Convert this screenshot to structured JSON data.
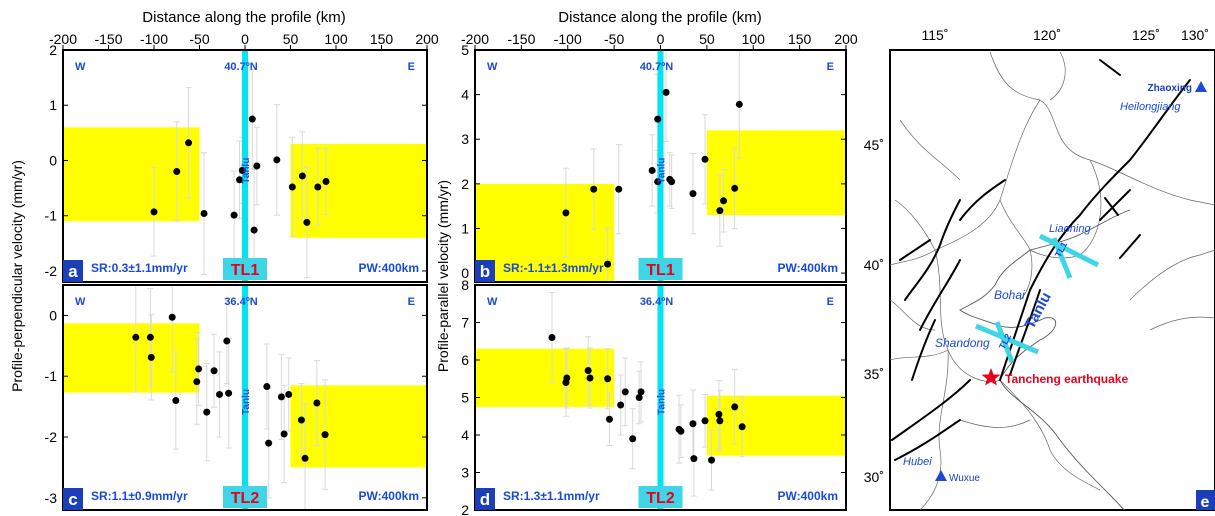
{
  "colors": {
    "band": "#ffff00",
    "fault_line": "#00e5ee",
    "label_blue": "#1a4ad6",
    "panel_label_bg": "#1a3fb8",
    "profile_tag_bg": "#3fd5e6",
    "profile_tag_text": "#e8001c",
    "point": "#000000",
    "errorbar": "#d9d9d9"
  },
  "chart_data": [
    {
      "type": "scatter",
      "id": "a",
      "xlim": [
        -200,
        200
      ],
      "ylim": [
        -2.2,
        2
      ],
      "xticks": [
        -200,
        -150,
        -100,
        -50,
        0,
        50,
        100,
        150,
        200
      ],
      "yticks": [
        -2,
        -1,
        0,
        1,
        2
      ],
      "top_axis_label": "Distance along the profile (km)",
      "ylabel": "Profile-perpendicular velocity (mm/yr)",
      "corner_w": "W",
      "corner_e": "E",
      "lat_label": "40.7ºN",
      "fault_label": "Tanlu",
      "sr_label": "SR:0.3±1.1mm/yr",
      "pw_label": "PW:400km",
      "profile_tag": "TL1",
      "panel_letter": "a",
      "bands": [
        {
          "x": [
            -200,
            -50
          ],
          "y": [
            -1.1,
            0.6
          ]
        },
        {
          "x": [
            50,
            200
          ],
          "y": [
            -1.4,
            0.3
          ]
        }
      ],
      "points": [
        {
          "x": -100,
          "y": -0.93,
          "err": 0.8
        },
        {
          "x": -75,
          "y": -0.2,
          "err": 0.9
        },
        {
          "x": -62,
          "y": 0.32,
          "err": 1.0
        },
        {
          "x": -45,
          "y": -0.96,
          "err": 1.1
        },
        {
          "x": -12,
          "y": -0.99,
          "err": 0.8
        },
        {
          "x": -6,
          "y": -0.35,
          "err": 0.7
        },
        {
          "x": -3,
          "y": -0.18,
          "err": 0.6
        },
        {
          "x": 8,
          "y": 0.75,
          "err": 0.9
        },
        {
          "x": 10,
          "y": -1.26,
          "err": 1.1
        },
        {
          "x": 13,
          "y": -0.1,
          "err": 0.7
        },
        {
          "x": 35,
          "y": 0.01,
          "err": 1.0
        },
        {
          "x": 52,
          "y": -0.48,
          "err": 0.9
        },
        {
          "x": 63,
          "y": -0.28,
          "err": 0.8
        },
        {
          "x": 68,
          "y": -1.12,
          "err": 1.0
        },
        {
          "x": 80,
          "y": -0.48,
          "err": 0.7
        },
        {
          "x": 89,
          "y": -0.38,
          "err": 0.6
        }
      ]
    },
    {
      "type": "scatter",
      "id": "b",
      "xlim": [
        -200,
        200
      ],
      "ylim": [
        -0.2,
        5
      ],
      "xticks": [
        -200,
        -150,
        -100,
        -50,
        0,
        50,
        100,
        150,
        200
      ],
      "yticks": [
        0,
        1,
        2,
        3,
        4,
        5
      ],
      "top_axis_label": "Distance along the profile (km)",
      "ylabel": "Profile-parallel velocity (mm/yr)",
      "corner_w": "W",
      "corner_e": "E",
      "lat_label": "40.7ºN",
      "fault_label": "Tanlu",
      "sr_label": "SR:-1.1±1.3mm/yr",
      "pw_label": "PW:400km",
      "profile_tag": "TL1",
      "panel_letter": "b",
      "bands": [
        {
          "x": [
            -200,
            -50
          ],
          "y": [
            -0.2,
            2.0
          ]
        },
        {
          "x": [
            50,
            200
          ],
          "y": [
            1.3,
            3.2
          ]
        }
      ],
      "points": [
        {
          "x": -102,
          "y": 1.35,
          "err": 1.0
        },
        {
          "x": -72,
          "y": 1.88,
          "err": 0.9
        },
        {
          "x": -57,
          "y": 0.2,
          "err": 0.8
        },
        {
          "x": -45,
          "y": 1.88,
          "err": 1.0
        },
        {
          "x": -9,
          "y": 2.3,
          "err": 0.8
        },
        {
          "x": -3,
          "y": 3.45,
          "err": 1.0
        },
        {
          "x": -3,
          "y": 2.05,
          "err": 0.7
        },
        {
          "x": 6,
          "y": 4.05,
          "err": 1.1
        },
        {
          "x": 10,
          "y": 2.1,
          "err": 0.6
        },
        {
          "x": 12,
          "y": 2.05,
          "err": 0.6
        },
        {
          "x": 35,
          "y": 1.78,
          "err": 0.9
        },
        {
          "x": 48,
          "y": 2.55,
          "err": 1.0
        },
        {
          "x": 64,
          "y": 1.4,
          "err": 0.8
        },
        {
          "x": 68,
          "y": 1.62,
          "err": 0.7
        },
        {
          "x": 80,
          "y": 1.9,
          "err": 0.9
        },
        {
          "x": 85,
          "y": 3.78,
          "err": 1.2
        }
      ]
    },
    {
      "type": "scatter",
      "id": "c",
      "xlim": [
        -200,
        200
      ],
      "ylim": [
        -3.2,
        0.5
      ],
      "yticks": [
        -3,
        -2,
        -1,
        0
      ],
      "corner_w": "W",
      "corner_e": "E",
      "lat_label": "36.4ºN",
      "fault_label": "Tanlu",
      "sr_label": "SR:1.1±0.9mm/yr",
      "pw_label": "PW:400km",
      "profile_tag": "TL2",
      "panel_letter": "c",
      "bands": [
        {
          "x": [
            -200,
            -50
          ],
          "y": [
            -1.27,
            -0.13
          ]
        },
        {
          "x": [
            50,
            200
          ],
          "y": [
            -2.5,
            -1.15
          ]
        }
      ],
      "points": [
        {
          "x": -120,
          "y": -0.36,
          "err": 0.9
        },
        {
          "x": -104,
          "y": -0.36,
          "err": 0.8
        },
        {
          "x": -103,
          "y": -0.69,
          "err": 0.7
        },
        {
          "x": -80,
          "y": -0.03,
          "err": 0.9
        },
        {
          "x": -76,
          "y": -1.4,
          "err": 0.8
        },
        {
          "x": -53,
          "y": -1.09,
          "err": 0.7
        },
        {
          "x": -51,
          "y": -0.88,
          "err": 0.6
        },
        {
          "x": -42,
          "y": -1.59,
          "err": 0.8
        },
        {
          "x": -34,
          "y": -0.91,
          "err": 0.6
        },
        {
          "x": -28,
          "y": -1.3,
          "err": 0.7
        },
        {
          "x": -20,
          "y": -0.42,
          "err": 0.7
        },
        {
          "x": -18,
          "y": -1.28,
          "err": 0.9
        },
        {
          "x": 24,
          "y": -1.17,
          "err": 0.7
        },
        {
          "x": 26,
          "y": -2.1,
          "err": 0.9
        },
        {
          "x": 40,
          "y": -1.34,
          "err": 0.7
        },
        {
          "x": 43,
          "y": -1.95,
          "err": 0.8
        },
        {
          "x": 48,
          "y": -1.3,
          "err": 0.6
        },
        {
          "x": 62,
          "y": -1.72,
          "err": 0.6
        },
        {
          "x": 66,
          "y": -2.35,
          "err": 0.9
        },
        {
          "x": 79,
          "y": -1.44,
          "err": 0.7
        },
        {
          "x": 88,
          "y": -1.96,
          "err": 0.9
        }
      ]
    },
    {
      "type": "scatter",
      "id": "d",
      "xlim": [
        -200,
        200
      ],
      "ylim": [
        2,
        8
      ],
      "yticks": [
        2,
        3,
        4,
        5,
        6,
        7,
        8
      ],
      "corner_w": "W",
      "corner_e": "E",
      "lat_label": "36.4ºN",
      "fault_label": "Tanlu",
      "sr_label": "SR:1.3±1.1mm/yr",
      "pw_label": "PW:400km",
      "profile_tag": "TL2",
      "panel_letter": "d",
      "bands": [
        {
          "x": [
            -200,
            -50
          ],
          "y": [
            4.75,
            6.3
          ]
        },
        {
          "x": [
            50,
            200
          ],
          "y": [
            3.45,
            5.05
          ]
        }
      ],
      "points": [
        {
          "x": -117,
          "y": 6.6,
          "err": 1.2
        },
        {
          "x": -102,
          "y": 5.4,
          "err": 0.9
        },
        {
          "x": -101,
          "y": 5.52,
          "err": 0.8
        },
        {
          "x": -78,
          "y": 5.72,
          "err": 0.9
        },
        {
          "x": -76,
          "y": 5.52,
          "err": 0.8
        },
        {
          "x": -57,
          "y": 5.5,
          "err": 0.8
        },
        {
          "x": -55,
          "y": 4.42,
          "err": 0.7
        },
        {
          "x": -43,
          "y": 4.8,
          "err": 0.8
        },
        {
          "x": -38,
          "y": 5.15,
          "err": 0.9
        },
        {
          "x": -30,
          "y": 3.9,
          "err": 0.8
        },
        {
          "x": -23,
          "y": 5.0,
          "err": 0.7
        },
        {
          "x": -21,
          "y": 5.15,
          "err": 0.8
        },
        {
          "x": 20,
          "y": 4.15,
          "err": 0.9
        },
        {
          "x": 22,
          "y": 4.1,
          "err": 0.7
        },
        {
          "x": 35,
          "y": 4.3,
          "err": 0.9
        },
        {
          "x": 36,
          "y": 3.37,
          "err": 1.0
        },
        {
          "x": 48,
          "y": 4.38,
          "err": 0.7
        },
        {
          "x": 55,
          "y": 3.33,
          "err": 0.8
        },
        {
          "x": 63,
          "y": 4.55,
          "err": 0.9
        },
        {
          "x": 64,
          "y": 4.38,
          "err": 0.8
        },
        {
          "x": 80,
          "y": 4.75,
          "err": 1.0
        },
        {
          "x": 88,
          "y": 4.22,
          "err": 0.8
        }
      ]
    }
  ],
  "map": {
    "lon_ticks": [
      "115˚",
      "120˚",
      "125˚",
      "130˚"
    ],
    "lat_ticks": [
      "30˚",
      "35˚",
      "40˚",
      "45˚"
    ],
    "labels": {
      "zhaoxing": "Zhaoxing",
      "heilongjiang": "Heilongjiang",
      "liaoning": "Liaoning",
      "bohai": "Bohai",
      "shandong": "Shandong",
      "tanlu": "Tanlu",
      "tancheng": "Tancheng earthquake",
      "hubei": "Hubei",
      "wuxue": "Wuxue",
      "tl1": "TL1",
      "tl2": "TL2",
      "panel_letter": "e"
    }
  }
}
